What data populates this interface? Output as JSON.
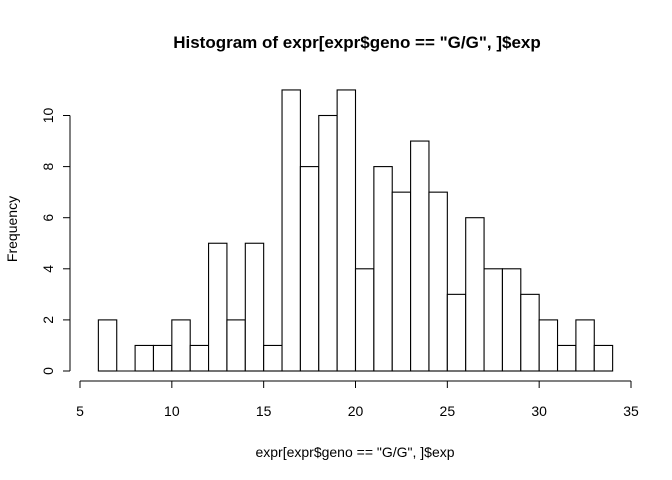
{
  "chart_data": {
    "type": "bar",
    "title": "Histogram of expr[expr$geno == \"G/G\", ]$exp",
    "xlabel": "expr[expr$geno == \"G/G\", ]$exp",
    "ylabel": "Frequency",
    "bin_edges": [
      6,
      7,
      8,
      9,
      10,
      11,
      12,
      13,
      14,
      15,
      16,
      17,
      18,
      19,
      20,
      21,
      22,
      23,
      24,
      25,
      26,
      27,
      28,
      29,
      30,
      31,
      32,
      33,
      34
    ],
    "values": [
      2,
      0,
      1,
      1,
      2,
      1,
      5,
      2,
      5,
      1,
      11,
      8,
      10,
      11,
      4,
      8,
      7,
      9,
      7,
      3,
      6,
      4,
      4,
      3,
      2,
      1,
      2,
      1
    ],
    "xlim": [
      5,
      35
    ],
    "ylim": [
      0,
      11
    ],
    "xticks": [
      "5",
      "10",
      "15",
      "20",
      "25",
      "30",
      "35"
    ],
    "yticks": [
      "0",
      "2",
      "4",
      "6",
      "8",
      "10"
    ],
    "grid": false
  }
}
